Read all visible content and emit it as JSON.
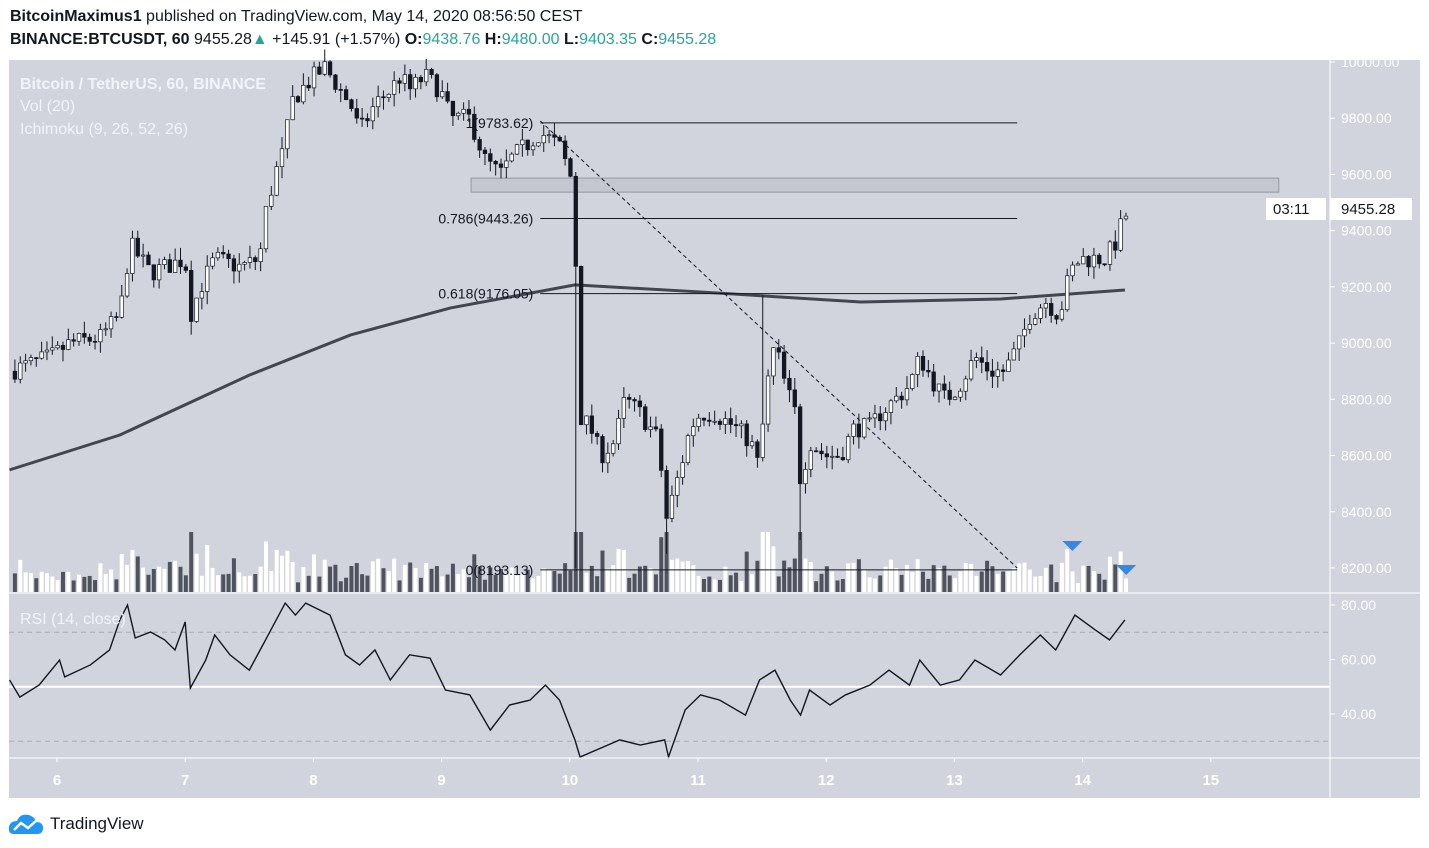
{
  "header": {
    "author": "BitcoinMaximus1",
    "published": "published on TradingView.com, May 14, 2020 08:56:50 CEST",
    "symbol": "BINANCE:BTCUSDT, 60",
    "last": "9455.28",
    "change": "+145.91 (+1.57%)",
    "o_label": "O:",
    "o": "9438.76",
    "h_label": "H:",
    "h": "9480.00",
    "l_label": "L:",
    "l": "9403.35",
    "c_label": "C:",
    "c": "9455.28"
  },
  "legend": {
    "title": "Bitcoin / TetherUS, 60, BINANCE",
    "vol": "Vol (20)",
    "ichimoku": "Ichimoku (9, 26, 52, 26)",
    "rsi": "RSI (14, close)"
  },
  "price_label": "9455.28",
  "countdown": "03:11",
  "logo": "TradingView",
  "colors": {
    "background": "#d1d4dc",
    "up": "#ffffff",
    "down": "#131722",
    "accent": "#2962ff",
    "marker": "#3a86e0"
  },
  "chart_data": {
    "type": "candlestick",
    "x_unit": "day of May 2020",
    "xticks": [
      6,
      7,
      8,
      9,
      10,
      11,
      12,
      13,
      14,
      15
    ],
    "xlim": [
      5.63,
      15.94
    ],
    "ylim": [
      8100,
      10000
    ],
    "yticks": [
      "10000.00",
      "9800.00",
      "9600.00",
      "9400.00",
      "9200.00",
      "9000.00",
      "8800.00",
      "8600.00",
      "8400.00",
      "8200.00"
    ],
    "price_path": [
      [
        5.63,
        8900
      ],
      [
        5.95,
        8950
      ],
      [
        6.1,
        9000
      ],
      [
        6.34,
        9020
      ],
      [
        6.49,
        9100
      ],
      [
        6.57,
        9350
      ],
      [
        6.73,
        9250
      ],
      [
        7.0,
        9300
      ],
      [
        7.04,
        9100
      ],
      [
        7.12,
        9200
      ],
      [
        7.23,
        9300
      ],
      [
        7.43,
        9270
      ],
      [
        7.58,
        9300
      ],
      [
        7.62,
        9450
      ],
      [
        7.7,
        9600
      ],
      [
        7.78,
        9700
      ],
      [
        7.82,
        9850
      ],
      [
        7.9,
        9900
      ],
      [
        8.01,
        9950
      ],
      [
        8.09,
        9980
      ],
      [
        8.21,
        9900
      ],
      [
        8.29,
        9850
      ],
      [
        8.36,
        9750
      ],
      [
        8.48,
        9850
      ],
      [
        8.6,
        9900
      ],
      [
        8.68,
        9950
      ],
      [
        8.75,
        9900
      ],
      [
        8.87,
        9950
      ],
      [
        8.99,
        9900
      ],
      [
        9.07,
        9800
      ],
      [
        9.22,
        9800
      ],
      [
        9.34,
        9650
      ],
      [
        9.46,
        9600
      ],
      [
        9.53,
        9650
      ],
      [
        9.65,
        9700
      ],
      [
        9.77,
        9750
      ],
      [
        9.92,
        9700
      ],
      [
        10.04,
        9550
      ],
      [
        10.06,
        8750
      ],
      [
        10.16,
        8700
      ],
      [
        10.24,
        8600
      ],
      [
        10.35,
        8650
      ],
      [
        10.43,
        8800
      ],
      [
        10.55,
        8750
      ],
      [
        10.7,
        8650
      ],
      [
        10.74,
        8350
      ],
      [
        10.86,
        8550
      ],
      [
        10.94,
        8700
      ],
      [
        11.02,
        8750
      ],
      [
        11.13,
        8750
      ],
      [
        11.29,
        8700
      ],
      [
        11.41,
        8650
      ],
      [
        11.48,
        8550
      ],
      [
        11.52,
        8800
      ],
      [
        11.6,
        9000
      ],
      [
        11.68,
        8850
      ],
      [
        11.76,
        8750
      ],
      [
        11.8,
        8500
      ],
      [
        11.87,
        8650
      ],
      [
        11.99,
        8600
      ],
      [
        12.11,
        8600
      ],
      [
        12.22,
        8700
      ],
      [
        12.34,
        8700
      ],
      [
        12.42,
        8750
      ],
      [
        12.54,
        8800
      ],
      [
        12.65,
        8850
      ],
      [
        12.73,
        8950
      ],
      [
        12.85,
        8850
      ],
      [
        12.93,
        8800
      ],
      [
        13.04,
        8850
      ],
      [
        13.16,
        8950
      ],
      [
        13.28,
        8900
      ],
      [
        13.39,
        8900
      ],
      [
        13.51,
        9000
      ],
      [
        13.59,
        9100
      ],
      [
        13.71,
        9150
      ],
      [
        13.82,
        9100
      ],
      [
        13.9,
        9250
      ],
      [
        13.98,
        9300
      ],
      [
        14.1,
        9300
      ],
      [
        14.17,
        9300
      ],
      [
        14.25,
        9350
      ],
      [
        14.33,
        9455.28
      ]
    ],
    "spikes": [
      [
        10.06,
        8200
      ],
      [
        10.74,
        8250
      ],
      [
        11.8,
        8300
      ],
      [
        11.52,
        9170
      ],
      [
        6.57,
        9400
      ],
      [
        7.04,
        9030
      ]
    ],
    "moving_average": [
      [
        5.63,
        8549
      ],
      [
        6.49,
        8673
      ],
      [
        7.5,
        8886
      ],
      [
        8.29,
        9029
      ],
      [
        9.07,
        9125
      ],
      [
        10.04,
        9207
      ],
      [
        11.02,
        9182
      ],
      [
        12.27,
        9146
      ],
      [
        13.36,
        9157
      ],
      [
        14.33,
        9189
      ]
    ],
    "fib_levels": [
      {
        "label": "1(9783.62)",
        "value": 9783.62
      },
      {
        "label": "0.786(9443.26)",
        "value": 9443.26
      },
      {
        "label": "0.618(9176.05)",
        "value": 9176.05
      },
      {
        "label": "0(8193.13)",
        "value": 8193.13
      }
    ],
    "fib_range": [
      9.77,
      13.49
    ],
    "zone": {
      "from": 9537,
      "to": 9587,
      "x": [
        9.23,
        15.53
      ]
    },
    "trendline": [
      [
        9.77,
        9790
      ],
      [
        13.49,
        8200
      ]
    ],
    "markers": [
      13.92,
      14.34
    ],
    "rsi": {
      "ylim": [
        20,
        85
      ],
      "yticks": [
        "80.00",
        "60.00",
        "40.00"
      ],
      "bands": [
        30,
        50,
        70
      ],
      "values": [
        [
          5.63,
          52.5
        ],
        [
          5.71,
          46.2
        ],
        [
          5.86,
          50.6
        ],
        [
          6.02,
          59.8
        ],
        [
          6.06,
          53.6
        ],
        [
          6.26,
          58
        ],
        [
          6.41,
          63.5
        ],
        [
          6.49,
          74.5
        ],
        [
          6.55,
          80
        ],
        [
          6.61,
          67.9
        ],
        [
          6.73,
          70.1
        ],
        [
          6.84,
          67.2
        ],
        [
          6.92,
          63.5
        ],
        [
          7.0,
          73.8
        ],
        [
          7.04,
          49.5
        ],
        [
          7.16,
          59.8
        ],
        [
          7.23,
          69
        ],
        [
          7.35,
          61.7
        ],
        [
          7.5,
          56.1
        ],
        [
          7.66,
          70.1
        ],
        [
          7.78,
          80.7
        ],
        [
          7.86,
          76.3
        ],
        [
          7.94,
          80.7
        ],
        [
          8.13,
          76.3
        ],
        [
          8.25,
          61.7
        ],
        [
          8.36,
          58
        ],
        [
          8.48,
          63.5
        ],
        [
          8.6,
          52.5
        ],
        [
          8.75,
          61.7
        ],
        [
          8.91,
          60.5
        ],
        [
          9.03,
          48.8
        ],
        [
          9.22,
          47
        ],
        [
          9.38,
          34.1
        ],
        [
          9.53,
          43.3
        ],
        [
          9.69,
          45.1
        ],
        [
          9.81,
          50.6
        ],
        [
          9.92,
          45.1
        ],
        [
          10.04,
          30.5
        ],
        [
          10.08,
          23.1
        ],
        [
          10.39,
          30.5
        ],
        [
          10.55,
          28.6
        ],
        [
          10.74,
          30.5
        ],
        [
          10.77,
          23.1
        ],
        [
          10.9,
          41.5
        ],
        [
          11.02,
          47
        ],
        [
          11.17,
          45.1
        ],
        [
          11.37,
          39.6
        ],
        [
          11.48,
          52.5
        ],
        [
          11.6,
          56.1
        ],
        [
          11.72,
          45.1
        ],
        [
          11.8,
          39.6
        ],
        [
          11.87,
          48.8
        ],
        [
          12.03,
          43.3
        ],
        [
          12.15,
          47
        ],
        [
          12.34,
          50.6
        ],
        [
          12.49,
          56.1
        ],
        [
          12.65,
          50.6
        ],
        [
          12.73,
          59.8
        ],
        [
          12.89,
          50.6
        ],
        [
          13.04,
          52.5
        ],
        [
          13.16,
          59.8
        ],
        [
          13.36,
          54.3
        ],
        [
          13.51,
          61.7
        ],
        [
          13.67,
          69
        ],
        [
          13.79,
          63.5
        ],
        [
          13.94,
          76.3
        ],
        [
          14.1,
          70.8
        ],
        [
          14.21,
          67.2
        ],
        [
          14.33,
          74.5
        ]
      ]
    }
  }
}
